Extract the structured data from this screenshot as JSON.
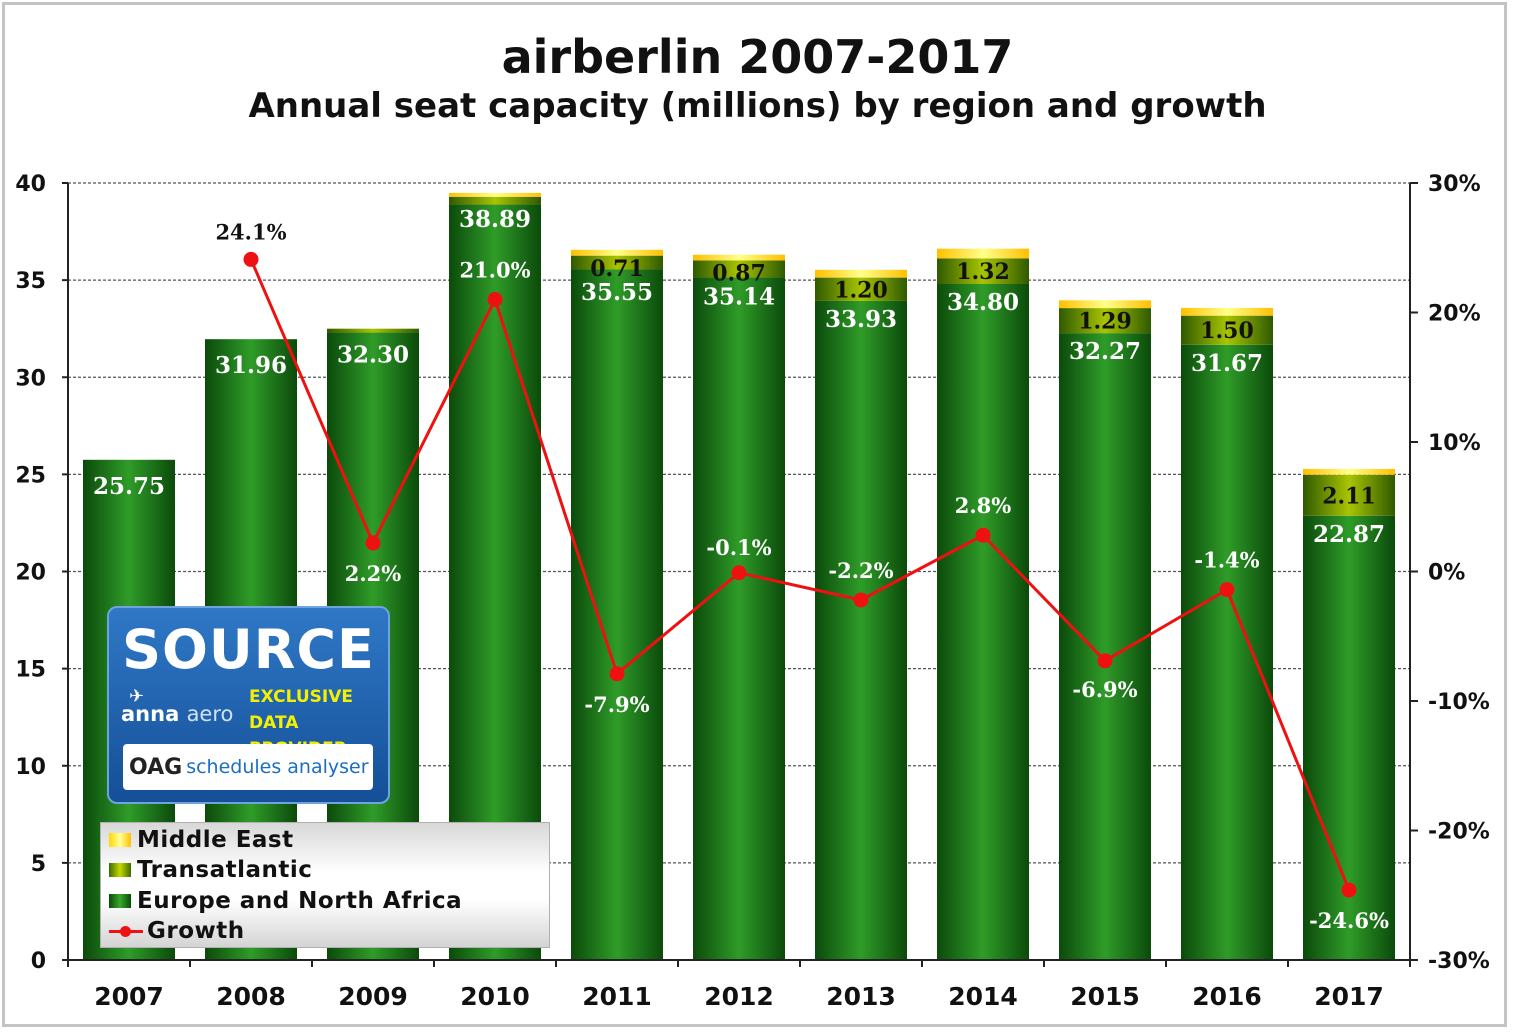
{
  "title": "airberlin 2007-2017",
  "subtitle": "Annual seat capacity (millions) by region and growth",
  "chart_data": {
    "type": "bar",
    "categories": [
      "2007",
      "2008",
      "2009",
      "2010",
      "2011",
      "2012",
      "2013",
      "2014",
      "2015",
      "2016",
      "2017"
    ],
    "series": [
      {
        "name": "Europe and North Africa",
        "values": [
          25.75,
          31.96,
          32.3,
          38.89,
          35.55,
          35.14,
          33.93,
          34.8,
          32.27,
          31.67,
          22.87
        ],
        "labels": [
          "25.75",
          "31.96",
          "32.30",
          "38.89",
          "35.55",
          "35.14",
          "33.93",
          "34.80",
          "32.27",
          "31.67",
          "22.87"
        ],
        "color": "#1f7a1f"
      },
      {
        "name": "Transatlantic",
        "values": [
          0,
          0,
          0.2,
          0.4,
          0.71,
          0.87,
          1.2,
          1.32,
          1.29,
          1.5,
          2.11
        ],
        "labels": [
          "",
          "",
          "",
          "",
          "0.71",
          "0.87",
          "1.20",
          "1.32",
          "1.29",
          "1.50",
          "2.11"
        ],
        "color": "#8aa800"
      },
      {
        "name": "Middle East",
        "values": [
          0,
          0,
          0,
          0.2,
          0.3,
          0.3,
          0.4,
          0.5,
          0.4,
          0.4,
          0.3
        ],
        "labels": [
          "",
          "",
          "",
          "",
          "",
          "",
          "",
          "",
          "",
          "",
          ""
        ],
        "color": "#ffd400"
      },
      {
        "name": "Growth",
        "type": "line",
        "axis": "right",
        "values": [
          null,
          24.1,
          2.2,
          21.0,
          -7.9,
          -0.1,
          -2.2,
          2.8,
          -6.9,
          -1.4,
          -24.6
        ],
        "labels": [
          "",
          "24.1%",
          "2.2%",
          "21.0%",
          "-7.9%",
          "-0.1%",
          "-2.2%",
          "2.8%",
          "-6.9%",
          "-1.4%",
          "-24.6%"
        ],
        "color": "#ee1111"
      }
    ],
    "ylim": [
      0,
      40
    ],
    "y_ticks": [
      0,
      5,
      10,
      15,
      20,
      25,
      30,
      35,
      40
    ],
    "y_tick_labels": [
      "0",
      "5",
      "10",
      "15",
      "20",
      "25",
      "30",
      "35",
      "40"
    ],
    "y2lim": [
      -30,
      30
    ],
    "y2_ticks": [
      -30,
      -20,
      -10,
      0,
      10,
      20,
      30
    ],
    "y2_tick_labels": [
      "-30%",
      "-20%",
      "-10%",
      "0%",
      "10%",
      "20%",
      "30%"
    ],
    "grid": true,
    "legend_position": "bottom-left"
  },
  "legend": {
    "middle_east": "Middle East",
    "transatlantic": "Transatlantic",
    "europe": "Europe and North Africa",
    "growth": "Growth"
  },
  "source_badge": {
    "source": "SOURCE",
    "anna": "anna",
    "aero": "aero",
    "exclusive_line1": "EXCLUSIVE",
    "exclusive_line2": "DATA PROVIDER:",
    "oag": "OAG",
    "oag_product": "schedules analyser"
  }
}
